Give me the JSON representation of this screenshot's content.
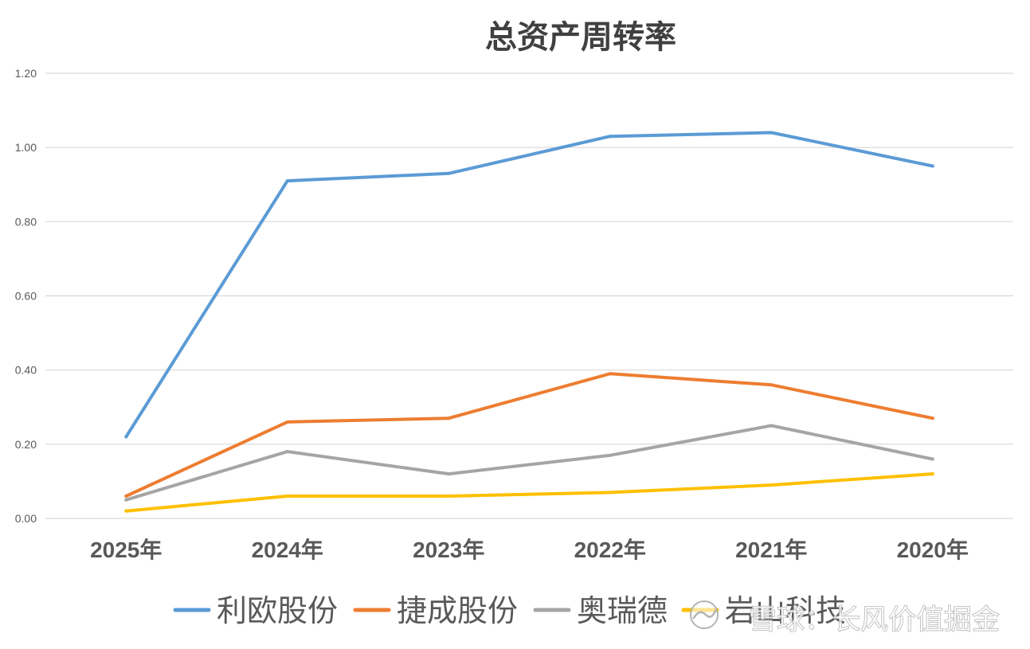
{
  "chart_data": {
    "type": "line",
    "title": "总资产周转率",
    "categories": [
      "2025年",
      "2024年",
      "2023年",
      "2022年",
      "2021年",
      "2020年"
    ],
    "ylim": [
      0,
      1.2
    ],
    "ytick_labels": [
      "0.00",
      "0.20",
      "0.40",
      "0.60",
      "0.80",
      "1.00",
      "1.20"
    ],
    "grid": true,
    "legend_position": "bottom",
    "series": [
      {
        "name": "利欧股份",
        "color": "#5B9BD5",
        "values": [
          0.22,
          0.91,
          0.93,
          1.03,
          1.04,
          0.95
        ]
      },
      {
        "name": "捷成股份",
        "color": "#ED7D31",
        "values": [
          0.06,
          0.26,
          0.27,
          0.39,
          0.36,
          0.27
        ]
      },
      {
        "name": "奥瑞德",
        "color": "#A5A5A5",
        "values": [
          0.05,
          0.18,
          0.12,
          0.17,
          0.25,
          0.16
        ]
      },
      {
        "name": "岩山科技",
        "color": "#FFC000",
        "values": [
          0.02,
          0.06,
          0.06,
          0.07,
          0.09,
          0.12
        ]
      }
    ]
  },
  "watermark": {
    "text": "雪球：长风价值掘金",
    "icon": "snowball-logo-icon"
  }
}
